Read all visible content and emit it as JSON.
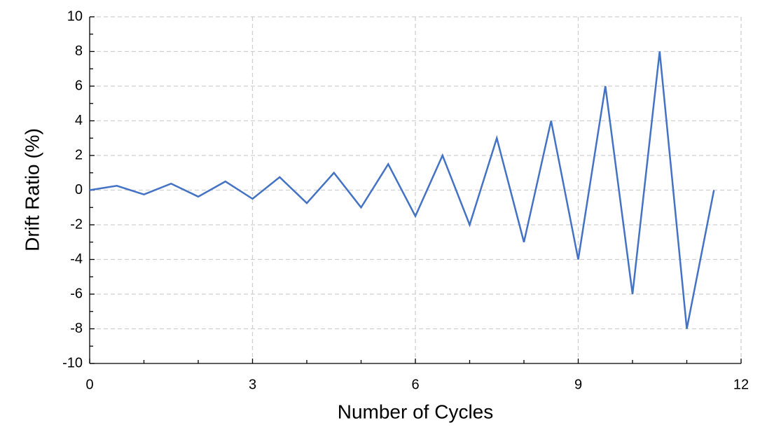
{
  "chart_data": {
    "type": "line",
    "xlabel": "Number of Cycles",
    "ylabel": "Drift Ratio (%)",
    "x": [
      0,
      0.5,
      1,
      1.5,
      2,
      2.5,
      3,
      3.5,
      4,
      4.5,
      5,
      5.5,
      6,
      6.5,
      7,
      7.5,
      8,
      8.5,
      9,
      9.5,
      10,
      10.5,
      11,
      11.5
    ],
    "values": [
      0,
      0.25,
      -0.25,
      0.375,
      -0.375,
      0.5,
      -0.5,
      0.75,
      -0.75,
      1,
      -1,
      1.5,
      -1.5,
      2,
      -2,
      3,
      -3,
      4,
      -4,
      6,
      -6,
      8,
      -8,
      0
    ],
    "color": "#4472c4",
    "xlim": [
      0,
      12
    ],
    "xticks": [
      0,
      3,
      6,
      9,
      12
    ],
    "xminorticks": [
      1,
      2,
      4,
      5,
      7,
      8,
      10,
      11
    ],
    "ylim": [
      -10,
      10
    ],
    "yticks": [
      -10,
      -8,
      -6,
      -4,
      -2,
      0,
      2,
      4,
      6,
      8,
      10
    ],
    "yminorticks": [
      -9,
      -7,
      -5,
      -3,
      -1,
      1,
      3,
      5,
      7,
      9
    ],
    "grid": true
  }
}
